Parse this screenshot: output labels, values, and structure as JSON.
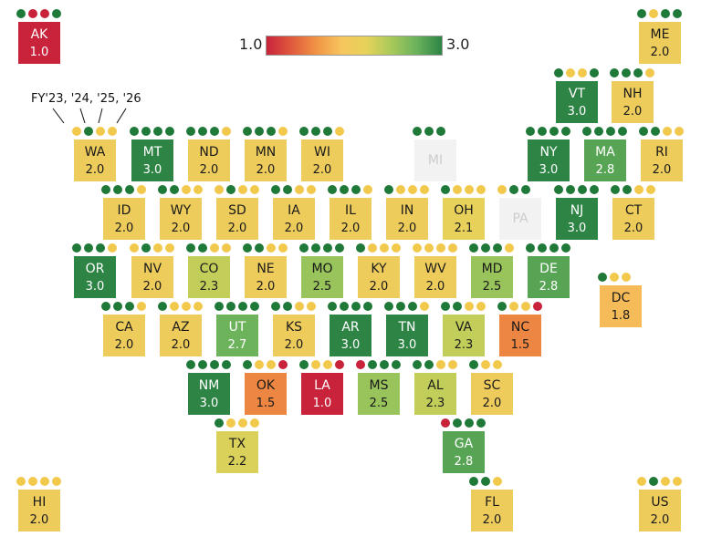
{
  "legend": {
    "min_label": "1.0",
    "max_label": "3.0",
    "stops": [
      "#c8233b",
      "#e05a3d",
      "#f09444",
      "#f7c55e",
      "#e5d35a",
      "#a8c95a",
      "#6ab25c",
      "#2e8445"
    ]
  },
  "fiscal_year_note": "FY'23, '24, '25, '26",
  "dot_colors": {
    "R": "#c8233b",
    "Y": "#f2c94c",
    "G": "#1f7a3a"
  },
  "chart_data": {
    "type": "heatmap",
    "color_scale": {
      "min": 1.0,
      "max": 3.0
    },
    "states": [
      {
        "abbr": "AK",
        "score": "1.0",
        "dots": [
          "G",
          "R",
          "R",
          "G"
        ]
      },
      {
        "abbr": "ME",
        "score": "2.0",
        "dots": [
          "G",
          "Y",
          "G",
          "G"
        ]
      },
      {
        "abbr": "VT",
        "score": "3.0",
        "dots": [
          "G",
          "Y",
          "Y",
          "G"
        ]
      },
      {
        "abbr": "NH",
        "score": "2.0",
        "dots": [
          "G",
          "G",
          "G",
          "Y"
        ]
      },
      {
        "abbr": "WA",
        "score": "2.0",
        "dots": [
          "Y",
          "G",
          "Y",
          "Y"
        ]
      },
      {
        "abbr": "MT",
        "score": "3.0",
        "dots": [
          "G",
          "G",
          "G",
          "G"
        ]
      },
      {
        "abbr": "ND",
        "score": "2.0",
        "dots": [
          "G",
          "G",
          "G",
          "Y"
        ]
      },
      {
        "abbr": "MN",
        "score": "2.0",
        "dots": [
          "G",
          "G",
          "G",
          "Y"
        ]
      },
      {
        "abbr": "WI",
        "score": "2.0",
        "dots": [
          "G",
          "G",
          "G",
          "Y"
        ]
      },
      {
        "abbr": "MI",
        "score": "",
        "dots": [
          "G",
          "G",
          "G"
        ]
      },
      {
        "abbr": "NY",
        "score": "3.0",
        "dots": [
          "G",
          "G",
          "G",
          "G"
        ]
      },
      {
        "abbr": "MA",
        "score": "2.8",
        "dots": [
          "G",
          "G",
          "G",
          "G"
        ]
      },
      {
        "abbr": "RI",
        "score": "2.0",
        "dots": [
          "G",
          "G",
          "Y",
          "Y"
        ]
      },
      {
        "abbr": "ID",
        "score": "2.0",
        "dots": [
          "G",
          "G",
          "G",
          "Y"
        ]
      },
      {
        "abbr": "WY",
        "score": "2.0",
        "dots": [
          "G",
          "G",
          "Y",
          "Y"
        ]
      },
      {
        "abbr": "SD",
        "score": "2.0",
        "dots": [
          "Y",
          "G",
          "Y",
          "Y"
        ]
      },
      {
        "abbr": "IA",
        "score": "2.0",
        "dots": [
          "G",
          "G",
          "Y",
          "Y"
        ]
      },
      {
        "abbr": "IL",
        "score": "2.0",
        "dots": [
          "G",
          "G",
          "G",
          "Y"
        ]
      },
      {
        "abbr": "IN",
        "score": "2.0",
        "dots": [
          "G",
          "Y",
          "Y",
          "Y"
        ]
      },
      {
        "abbr": "OH",
        "score": "2.1",
        "dots": [
          "G",
          "Y",
          "Y",
          "Y"
        ]
      },
      {
        "abbr": "PA",
        "score": "",
        "dots": [
          "Y",
          "G",
          "G"
        ]
      },
      {
        "abbr": "NJ",
        "score": "3.0",
        "dots": [
          "G",
          "G",
          "G",
          "G"
        ]
      },
      {
        "abbr": "CT",
        "score": "2.0",
        "dots": [
          "G",
          "G",
          "Y",
          "Y"
        ]
      },
      {
        "abbr": "OR",
        "score": "3.0",
        "dots": [
          "G",
          "G",
          "G",
          "Y"
        ]
      },
      {
        "abbr": "NV",
        "score": "2.0",
        "dots": [
          "Y",
          "G",
          "Y",
          "Y"
        ]
      },
      {
        "abbr": "CO",
        "score": "2.3",
        "dots": [
          "G",
          "G",
          "Y",
          "Y"
        ]
      },
      {
        "abbr": "NE",
        "score": "2.0",
        "dots": [
          "G",
          "G",
          "Y",
          "Y"
        ]
      },
      {
        "abbr": "MO",
        "score": "2.5",
        "dots": [
          "G",
          "G",
          "G",
          "G"
        ]
      },
      {
        "abbr": "KY",
        "score": "2.0",
        "dots": [
          "G",
          "Y",
          "Y",
          "Y"
        ]
      },
      {
        "abbr": "WV",
        "score": "2.0",
        "dots": [
          "Y",
          "Y",
          "Y",
          "Y"
        ]
      },
      {
        "abbr": "MD",
        "score": "2.5",
        "dots": [
          "G",
          "G",
          "G",
          "Y"
        ]
      },
      {
        "abbr": "DE",
        "score": "2.8",
        "dots": [
          "G",
          "G",
          "G",
          "G"
        ]
      },
      {
        "abbr": "DC",
        "score": "1.8",
        "dots": [
          "G",
          "Y",
          "Y"
        ]
      },
      {
        "abbr": "CA",
        "score": "2.0",
        "dots": [
          "G",
          "G",
          "G",
          "Y"
        ]
      },
      {
        "abbr": "AZ",
        "score": "2.0",
        "dots": [
          "G",
          "Y",
          "Y",
          "Y"
        ]
      },
      {
        "abbr": "UT",
        "score": "2.7",
        "dots": [
          "G",
          "G",
          "G",
          "G"
        ]
      },
      {
        "abbr": "KS",
        "score": "2.0",
        "dots": [
          "G",
          "G",
          "Y",
          "Y"
        ]
      },
      {
        "abbr": "AR",
        "score": "3.0",
        "dots": [
          "G",
          "G",
          "G",
          "G"
        ]
      },
      {
        "abbr": "TN",
        "score": "3.0",
        "dots": [
          "G",
          "G",
          "G",
          "Y"
        ]
      },
      {
        "abbr": "VA",
        "score": "2.3",
        "dots": [
          "G",
          "G",
          "Y",
          "Y"
        ]
      },
      {
        "abbr": "NC",
        "score": "1.5",
        "dots": [
          "G",
          "Y",
          "Y",
          "R"
        ]
      },
      {
        "abbr": "NM",
        "score": "3.0",
        "dots": [
          "G",
          "G",
          "G",
          "G"
        ]
      },
      {
        "abbr": "OK",
        "score": "1.5",
        "dots": [
          "G",
          "Y",
          "Y",
          "R"
        ]
      },
      {
        "abbr": "LA",
        "score": "1.0",
        "dots": [
          "G",
          "Y",
          "Y",
          "R"
        ]
      },
      {
        "abbr": "MS",
        "score": "2.5",
        "dots": [
          "R",
          "G",
          "G",
          "G"
        ]
      },
      {
        "abbr": "AL",
        "score": "2.3",
        "dots": [
          "G",
          "G",
          "Y",
          "Y"
        ]
      },
      {
        "abbr": "SC",
        "score": "2.0",
        "dots": [
          "G",
          "Y",
          "Y"
        ]
      },
      {
        "abbr": "TX",
        "score": "2.2",
        "dots": [
          "G",
          "Y",
          "Y",
          "Y"
        ]
      },
      {
        "abbr": "GA",
        "score": "2.8",
        "dots": [
          "R",
          "G",
          "G",
          "G"
        ]
      },
      {
        "abbr": "HI",
        "score": "2.0",
        "dots": [
          "Y",
          "Y",
          "Y",
          "Y"
        ]
      },
      {
        "abbr": "FL",
        "score": "2.0",
        "dots": [
          "G",
          "G",
          "Y"
        ]
      },
      {
        "abbr": "US",
        "score": "2.0",
        "dots": [
          "Y",
          "G",
          "Y",
          "Y"
        ]
      }
    ]
  }
}
